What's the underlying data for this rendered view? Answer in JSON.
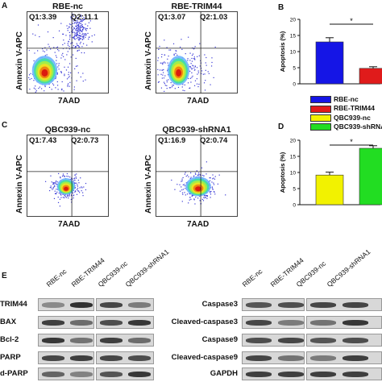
{
  "panels": {
    "A": "A",
    "B": "B",
    "C": "C",
    "D": "D",
    "E": "E"
  },
  "flow": [
    {
      "title": "RBE-nc",
      "q1": "Q1:3.39",
      "q2": "Q2:11.1"
    },
    {
      "title": "RBE-TRIM44",
      "q1": "Q1:3.07",
      "q2": "Q2:1.03"
    },
    {
      "title": "QBC939-nc",
      "q1": "Q1:7.43",
      "q2": "Q2:0.73"
    },
    {
      "title": "QBC939-shRNA1",
      "q1": "Q1:16.9",
      "q2": "Q2:0.74"
    }
  ],
  "flow_axes": {
    "y": "Annexin V-APC",
    "x": "7AAD"
  },
  "chart_data": [
    {
      "type": "bar",
      "categories": [
        "RBE-nc",
        "RBE-TRIM44"
      ],
      "values": [
        13.0,
        4.8
      ],
      "errors": [
        1.3,
        0.5
      ],
      "colors": [
        "#1515e6",
        "#e01b1b"
      ],
      "ylabel": "Apoptosis (%)",
      "ylim": [
        0,
        20
      ],
      "yticks": [
        0,
        5,
        10,
        15,
        20
      ],
      "sig": "*"
    },
    {
      "type": "bar",
      "categories": [
        "QBC939-nc",
        "QBC939-shRNA1"
      ],
      "values": [
        9.2,
        17.5
      ],
      "errors": [
        0.9,
        0.8
      ],
      "colors": [
        "#f2f200",
        "#22dd22"
      ],
      "ylabel": "Apoptosis (%)",
      "ylim": [
        0,
        20
      ],
      "yticks": [
        0,
        5,
        10,
        15,
        20
      ],
      "sig": "*"
    }
  ],
  "legend": [
    {
      "label": "RBE-nc",
      "color": "#1515e6"
    },
    {
      "label": "RBE-TRIM44",
      "color": "#e01b1b"
    },
    {
      "label": "QBC939-nc",
      "color": "#f2f200"
    },
    {
      "label": "QBC939-shRNA1",
      "color": "#22dd22"
    }
  ],
  "blot": {
    "lanes": [
      "RBE-nc",
      "RBE-TRIM44",
      "QBC939-nc",
      "QBC939-shRNA1"
    ],
    "left_rows": [
      "TRIM44",
      "BAX",
      "Bcl-2",
      "PARP",
      "d-PARP"
    ],
    "right_rows": [
      "Caspase3",
      "Cleaved-caspase3",
      "Caspase9",
      "Cleaved-caspase9",
      "GAPDH"
    ]
  }
}
